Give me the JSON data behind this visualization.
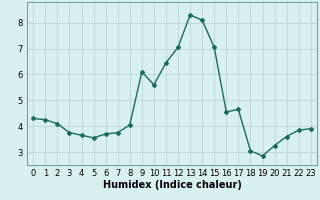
{
  "x": [
    0,
    1,
    2,
    3,
    4,
    5,
    6,
    7,
    8,
    9,
    10,
    11,
    12,
    13,
    14,
    15,
    16,
    17,
    18,
    19,
    20,
    21,
    22,
    23
  ],
  "y": [
    4.3,
    4.25,
    4.1,
    3.75,
    3.65,
    3.55,
    3.7,
    3.75,
    4.05,
    6.1,
    5.6,
    6.45,
    7.05,
    8.3,
    8.1,
    7.05,
    4.55,
    4.65,
    3.05,
    2.85,
    3.25,
    3.6,
    3.85,
    3.9
  ],
  "line_color": "#1a6b5a",
  "marker": "D",
  "marker_size": 2.0,
  "linewidth": 1.0,
  "xlabel": "Humidex (Indice chaleur)",
  "xlabel_fontsize": 7,
  "bg_color": "#d9f0f0",
  "grid_color": "#c0d8d8",
  "ylim": [
    2.5,
    8.8
  ],
  "xlim": [
    -0.5,
    23.5
  ],
  "yticks": [
    3,
    4,
    5,
    6,
    7,
    8
  ],
  "xticks": [
    0,
    1,
    2,
    3,
    4,
    5,
    6,
    7,
    8,
    9,
    10,
    11,
    12,
    13,
    14,
    15,
    16,
    17,
    18,
    19,
    20,
    21,
    22,
    23
  ],
  "tick_fontsize": 6.0,
  "spine_color": "#5a9090"
}
